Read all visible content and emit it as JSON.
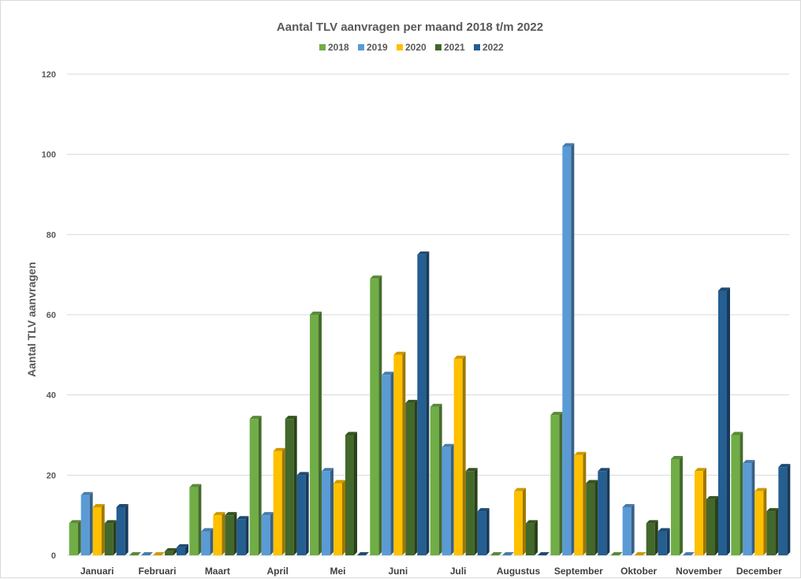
{
  "chart_data": {
    "type": "bar",
    "title": "Aantal TLV aanvragen per maand 2018 t/m 2022",
    "xlabel": "",
    "ylabel": "Aantal TLV aanvragen",
    "ylim": [
      0,
      120
    ],
    "yticks": [
      0,
      20,
      40,
      60,
      80,
      100,
      120
    ],
    "grid": true,
    "legend_position": "top",
    "categories": [
      "Januari",
      "Februari",
      "Maart",
      "April",
      "Mei",
      "Juni",
      "Juli",
      "Augustus",
      "September",
      "Oktober",
      "November",
      "December"
    ],
    "series": [
      {
        "name": "2018",
        "color": "#70ad47",
        "values": [
          8,
          0,
          17,
          34,
          60,
          69,
          37,
          0,
          35,
          0,
          24,
          30
        ]
      },
      {
        "name": "2019",
        "color": "#5b9bd5",
        "values": [
          15,
          0,
          6,
          10,
          21,
          45,
          27,
          0,
          102,
          12,
          0,
          23
        ]
      },
      {
        "name": "2020",
        "color": "#ffc000",
        "values": [
          12,
          0,
          10,
          26,
          18,
          50,
          49,
          16,
          25,
          0,
          21,
          16
        ]
      },
      {
        "name": "2021",
        "color": "#43682b",
        "values": [
          8,
          1,
          10,
          34,
          30,
          38,
          21,
          8,
          18,
          8,
          14,
          11
        ]
      },
      {
        "name": "2022",
        "color": "#255e91",
        "values": [
          12,
          2,
          9,
          20,
          0,
          75,
          11,
          0,
          21,
          6,
          66,
          22
        ]
      }
    ]
  }
}
